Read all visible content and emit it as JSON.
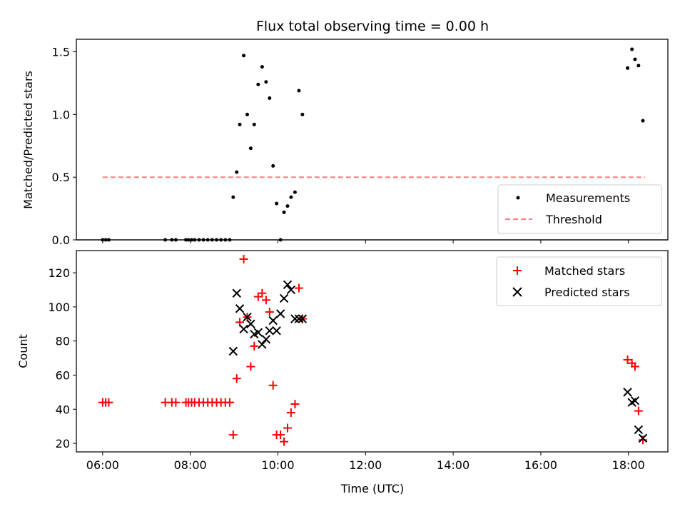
{
  "figure": {
    "title": "Flux total observing time = 0.00 h"
  },
  "chart_data": [
    {
      "type": "scatter",
      "ylabel": "Matched/Predicted stars",
      "xlim": [
        5.4,
        18.9
      ],
      "ylim": [
        0,
        1.6
      ],
      "yticks": [
        0.0,
        0.5,
        1.0,
        1.5
      ],
      "ytick_labels": [
        "0.0",
        "0.5",
        "1.0",
        "1.5"
      ],
      "legend": {
        "position": "lower-right",
        "entries": [
          "Measurements",
          "Threshold"
        ]
      },
      "threshold": {
        "name": "Threshold",
        "value": 0.5,
        "x": [
          6.0,
          18.38
        ],
        "color": "#ff7f7f"
      },
      "series": [
        {
          "name": "Measurements",
          "color": "#000000",
          "x": [
            6.0,
            6.07,
            6.14,
            7.43,
            7.58,
            7.67,
            7.9,
            7.96,
            8.03,
            8.1,
            8.2,
            8.3,
            8.4,
            8.5,
            8.6,
            8.7,
            8.8,
            8.9,
            8.98,
            9.06,
            9.13,
            9.22,
            9.3,
            9.38,
            9.46,
            9.55,
            9.64,
            9.73,
            9.81,
            9.89,
            9.97,
            10.06,
            10.14,
            10.22,
            10.3,
            10.39,
            10.48,
            10.56,
            17.98,
            18.08,
            18.15,
            18.23,
            18.33
          ],
          "y": [
            0,
            0,
            0,
            0,
            0,
            0,
            0,
            0,
            0,
            0,
            0,
            0,
            0,
            0,
            0,
            0,
            0,
            0,
            0.34,
            0.54,
            0.92,
            1.47,
            1.0,
            0.73,
            0.92,
            1.24,
            1.38,
            1.26,
            1.13,
            0.59,
            0.29,
            0.0,
            0.22,
            0.27,
            0.34,
            0.38,
            1.19,
            1.0,
            1.37,
            1.52,
            1.44,
            1.39,
            0.95
          ]
        }
      ]
    },
    {
      "type": "scatter",
      "xlabel": "Time (UTC)",
      "ylabel": "Count",
      "xlim": [
        5.4,
        18.9
      ],
      "ylim": [
        15,
        133
      ],
      "yticks": [
        20,
        40,
        60,
        80,
        100,
        120
      ],
      "ytick_labels": [
        "20",
        "40",
        "60",
        "80",
        "100",
        "120"
      ],
      "xticks": [
        6,
        8,
        10,
        12,
        14,
        16,
        18
      ],
      "xtick_labels": [
        "06:00",
        "08:00",
        "10:00",
        "12:00",
        "14:00",
        "16:00",
        "18:00"
      ],
      "legend": {
        "position": "upper-right",
        "entries": [
          "Matched stars",
          "Predicted stars"
        ]
      },
      "series": [
        {
          "name": "Matched stars",
          "marker": "plus",
          "color": "#ff0000",
          "x": [
            6.0,
            6.07,
            6.14,
            7.43,
            7.58,
            7.67,
            7.9,
            7.96,
            8.03,
            8.1,
            8.2,
            8.3,
            8.4,
            8.5,
            8.6,
            8.7,
            8.8,
            8.9,
            8.98,
            9.06,
            9.13,
            9.22,
            9.3,
            9.38,
            9.46,
            9.55,
            9.64,
            9.73,
            9.81,
            9.89,
            9.97,
            10.06,
            10.14,
            10.22,
            10.3,
            10.39,
            10.48,
            10.56,
            17.98,
            18.08,
            18.15,
            18.23,
            18.33
          ],
          "y": [
            44,
            44,
            44,
            44,
            44,
            44,
            44,
            44,
            44,
            44,
            44,
            44,
            44,
            44,
            44,
            44,
            44,
            44,
            25,
            58,
            91,
            128,
            94,
            65,
            77,
            106,
            108,
            104,
            97,
            54,
            25,
            25,
            21,
            29,
            38,
            43,
            111,
            93,
            69,
            67,
            65,
            39,
            22
          ]
        },
        {
          "name": "Predicted stars",
          "marker": "x",
          "color": "#000000",
          "x": [
            8.98,
            9.06,
            9.13,
            9.22,
            9.3,
            9.38,
            9.46,
            9.55,
            9.64,
            9.73,
            9.81,
            9.89,
            9.97,
            10.06,
            10.14,
            10.22,
            10.3,
            10.39,
            10.48,
            10.56,
            17.98,
            18.08,
            18.15,
            18.23,
            18.33
          ],
          "y": [
            74,
            108,
            99,
            87,
            94,
            90,
            84,
            85,
            78,
            81,
            86,
            92,
            86,
            96,
            105,
            113,
            110,
            93,
            93,
            93,
            50,
            44,
            45,
            28,
            23
          ]
        }
      ]
    }
  ]
}
